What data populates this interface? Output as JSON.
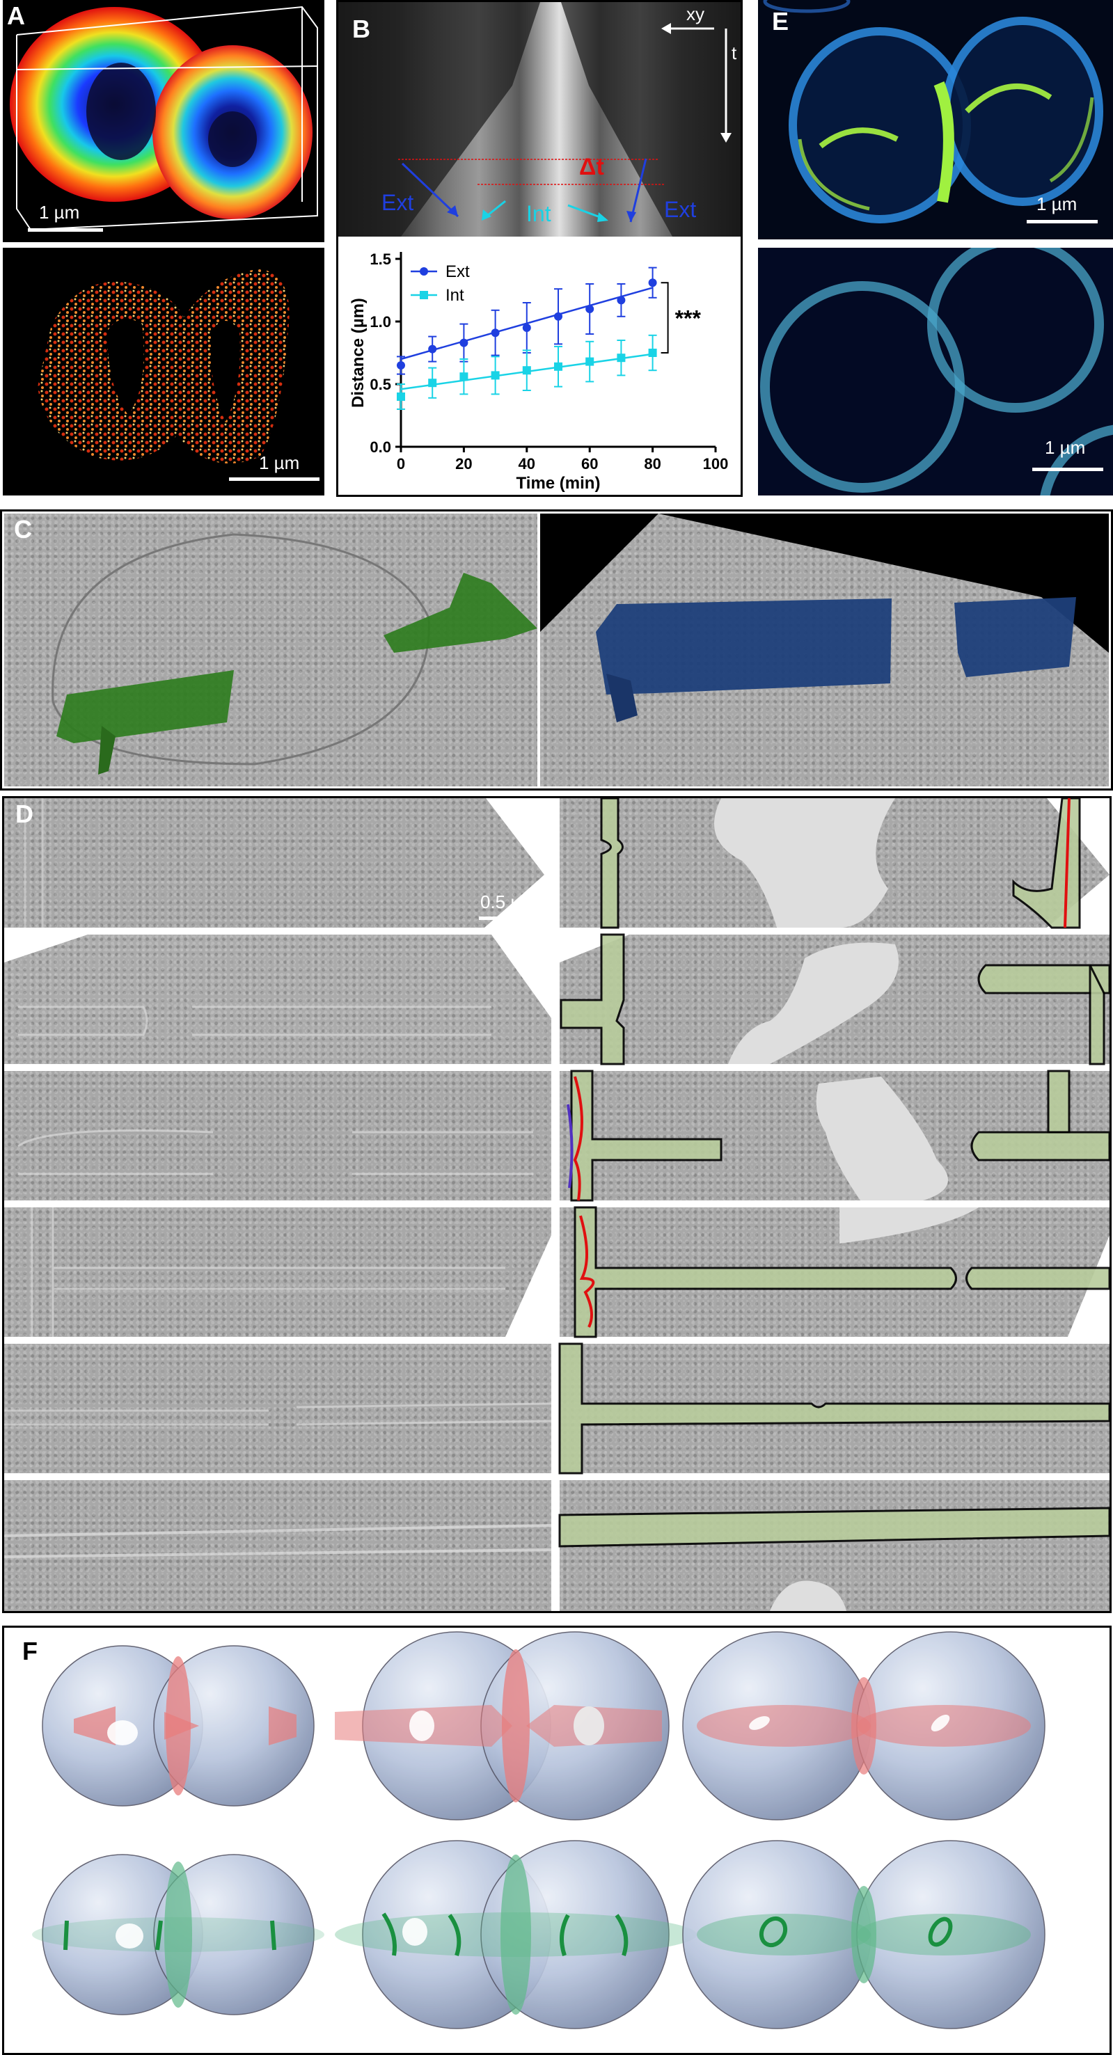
{
  "panels": {
    "A": {
      "letter": "A",
      "scale_top": "1 µm",
      "scale_bottom": "1 µm"
    },
    "B": {
      "letter": "B",
      "kymo": {
        "axis_xy": "xy",
        "axis_t": "t",
        "delta": "Δt",
        "ext_left": "Ext",
        "int": "Int",
        "ext_right": "Ext"
      }
    },
    "C": {
      "letter": "C"
    },
    "D": {
      "letter": "D",
      "scale": "0.5 µm"
    },
    "E": {
      "letter": "E",
      "scale_top": "1 µm",
      "scale_bottom": "1 µm"
    },
    "F": {
      "letter": "F"
    }
  },
  "colors": {
    "ext": "#1f3fdf",
    "int": "#19d3e6",
    "delta": "#e01010",
    "green_membrane": "#2f7d20",
    "blue_membrane": "#1e3f7a",
    "red_plane": "#e87c7c",
    "green_plane": "#5fb98a"
  },
  "chart_data": {
    "type": "line",
    "xlabel": "Time (min)",
    "ylabel": "Distance (µm)",
    "xlim": [
      0,
      100
    ],
    "ylim": [
      0,
      1.5
    ],
    "xticks": [
      "0",
      "20",
      "40",
      "60",
      "80",
      "100"
    ],
    "yticks": [
      "0.0",
      "0.5",
      "1.0",
      "1.5"
    ],
    "x": [
      0,
      10,
      20,
      30,
      40,
      50,
      60,
      70,
      80
    ],
    "series": [
      {
        "name": "Ext",
        "values": [
          0.65,
          0.78,
          0.83,
          0.91,
          0.95,
          1.04,
          1.1,
          1.17,
          1.31
        ],
        "errors": [
          0.07,
          0.1,
          0.15,
          0.18,
          0.2,
          0.22,
          0.2,
          0.13,
          0.12
        ],
        "fit": [
          0.7,
          1.27
        ]
      },
      {
        "name": "Int",
        "values": [
          0.4,
          0.51,
          0.56,
          0.57,
          0.61,
          0.64,
          0.68,
          0.71,
          0.75
        ],
        "errors": [
          0.1,
          0.12,
          0.14,
          0.15,
          0.16,
          0.16,
          0.16,
          0.14,
          0.14
        ],
        "fit": [
          0.46,
          0.74
        ]
      }
    ],
    "significance": "***"
  }
}
